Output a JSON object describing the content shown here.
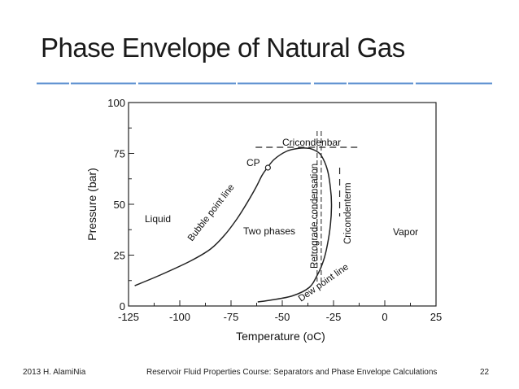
{
  "slide": {
    "title": "Phase Envelope of Natural Gas",
    "footer_left": "2013 H. AlamiNia",
    "footer_center": "Reservoir Fluid Properties Course: Separators and Phase Envelope Calculations",
    "page_number": "22",
    "accent_color": "#5b8fd0"
  },
  "chart_data": {
    "type": "line",
    "xlabel": "Temperature (oC)",
    "ylabel": "Pressure (bar)",
    "xlim": [
      -125,
      25
    ],
    "ylim": [
      0,
      100
    ],
    "x_ticks": [
      "-125",
      "-100",
      "-75",
      "-50",
      "-25",
      "0",
      "25"
    ],
    "y_ticks": [
      "0",
      "25",
      "50",
      "75",
      "100"
    ],
    "grid": false,
    "series": [
      {
        "name": "Bubble point line",
        "points": [
          [
            -122,
            10
          ],
          [
            -110,
            15
          ],
          [
            -95,
            22
          ],
          [
            -85,
            28
          ],
          [
            -78,
            35
          ],
          [
            -72,
            43
          ],
          [
            -67,
            51
          ],
          [
            -63,
            58
          ],
          [
            -60,
            64
          ],
          [
            -58,
            67
          ],
          [
            -54,
            72
          ],
          [
            -48,
            76
          ],
          [
            -42,
            77.5
          ],
          [
            -37,
            77.5
          ],
          [
            -34,
            76.5
          ]
        ]
      },
      {
        "name": "Dew point line",
        "points": [
          [
            -34,
            76.5
          ],
          [
            -31,
            74
          ],
          [
            -28,
            67
          ],
          [
            -26.5,
            58
          ],
          [
            -26,
            50
          ],
          [
            -26.5,
            40
          ],
          [
            -28,
            30
          ],
          [
            -30,
            22
          ],
          [
            -33,
            15
          ],
          [
            -37,
            9
          ],
          [
            -45,
            5
          ],
          [
            -55,
            3
          ],
          [
            -62,
            2
          ]
        ]
      }
    ],
    "annotations": {
      "liquid": "Liquid",
      "two_phases": "Two phases",
      "vapor": "Vapor",
      "bubble_line": "Bubble point line",
      "dew_line": "Dew point line",
      "cp": "CP",
      "cricondenbar": "Cricondenbar",
      "cricondenterm": "Cricondenterm",
      "retrograde": "Retrograde condensation"
    },
    "critical_point": [
      -57,
      68
    ],
    "cricondenbar_pressure": 78,
    "cricondenterm_temperature": -26,
    "retrograde_temperature": -31
  }
}
